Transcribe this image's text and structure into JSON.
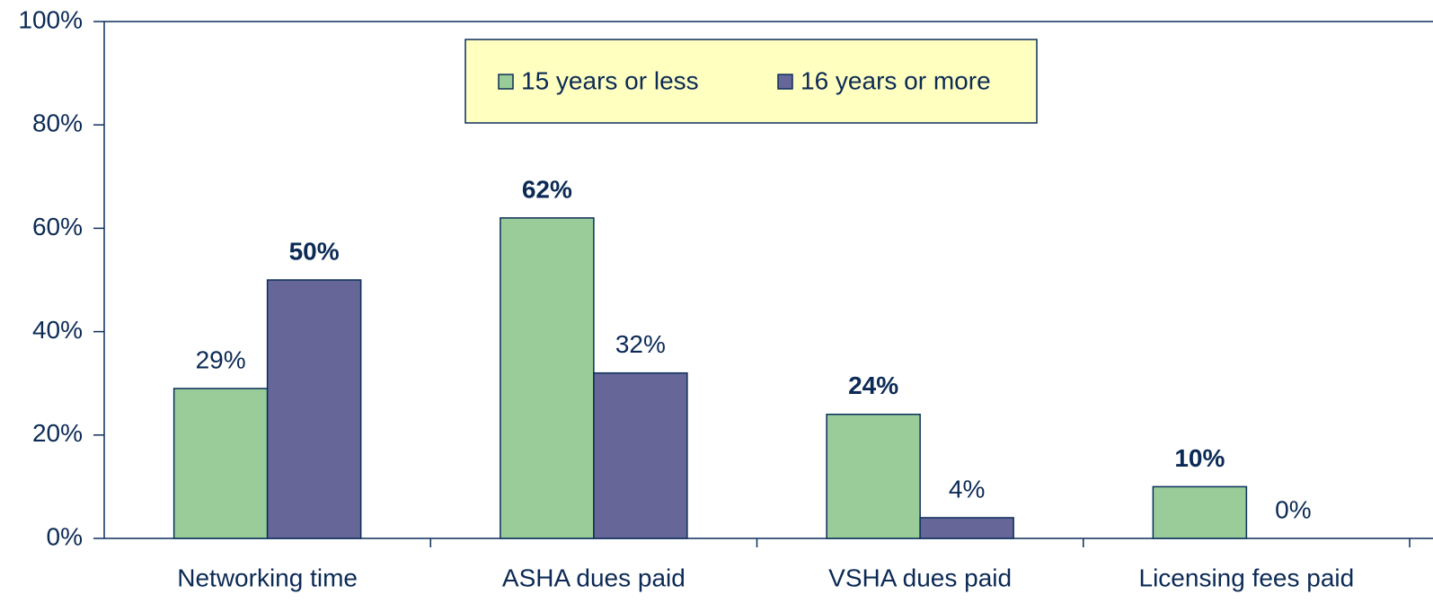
{
  "chart_data": {
    "type": "bar",
    "categories": [
      "Networking time",
      "ASHA dues paid",
      "VSHA dues paid",
      "Licensing fees paid"
    ],
    "series": [
      {
        "name": "15 years or less",
        "color": "#99cc99",
        "values": [
          29,
          62,
          24,
          10
        ],
        "value_labels": [
          "29%",
          "62%",
          "24%",
          "10%"
        ]
      },
      {
        "name": "16 years or more",
        "color": "#666699",
        "values": [
          50,
          32,
          4,
          0
        ],
        "value_labels": [
          "50%",
          "32%",
          "4%",
          "0%"
        ]
      }
    ],
    "ylim": [
      0,
      100
    ],
    "yticks": [
      {
        "value": 0,
        "label": "0%"
      },
      {
        "value": 20,
        "label": "20%"
      },
      {
        "value": 40,
        "label": "40%"
      },
      {
        "value": 60,
        "label": "60%"
      },
      {
        "value": 80,
        "label": "80%"
      },
      {
        "value": 100,
        "label": "100%"
      }
    ],
    "grid": false,
    "legend": "top"
  }
}
